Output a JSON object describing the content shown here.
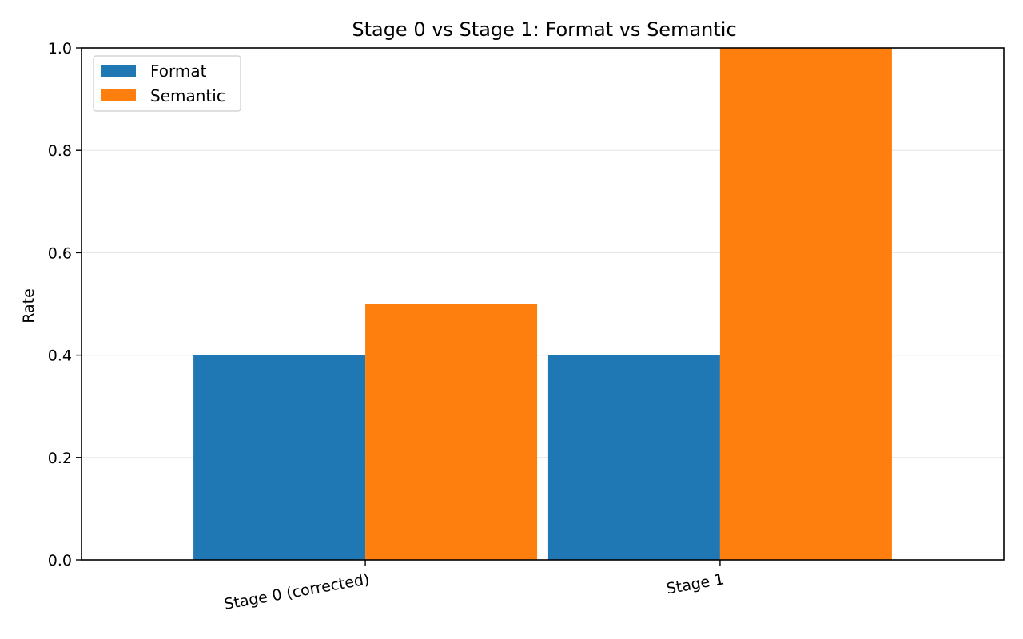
{
  "chart_data": {
    "type": "bar",
    "title": "Stage 0 vs Stage 1: Format vs Semantic",
    "xlabel": "",
    "ylabel": "Rate",
    "categories": [
      "Stage 0 (corrected)",
      "Stage 1"
    ],
    "series": [
      {
        "name": "Format",
        "values": [
          0.4,
          0.4
        ],
        "color": "#1f77b4"
      },
      {
        "name": "Semantic",
        "values": [
          0.5,
          1.0
        ],
        "color": "#ff7f0e"
      }
    ],
    "ylim": [
      0,
      1.0
    ],
    "yticks": [
      0.0,
      0.2,
      0.4,
      0.6,
      0.8,
      1.0
    ],
    "ytick_labels": [
      "0.0",
      "0.2",
      "0.4",
      "0.6",
      "0.8",
      "1.0"
    ],
    "grid": "y",
    "legend_position": "top-left",
    "grid_color": "#e6e6e6"
  }
}
